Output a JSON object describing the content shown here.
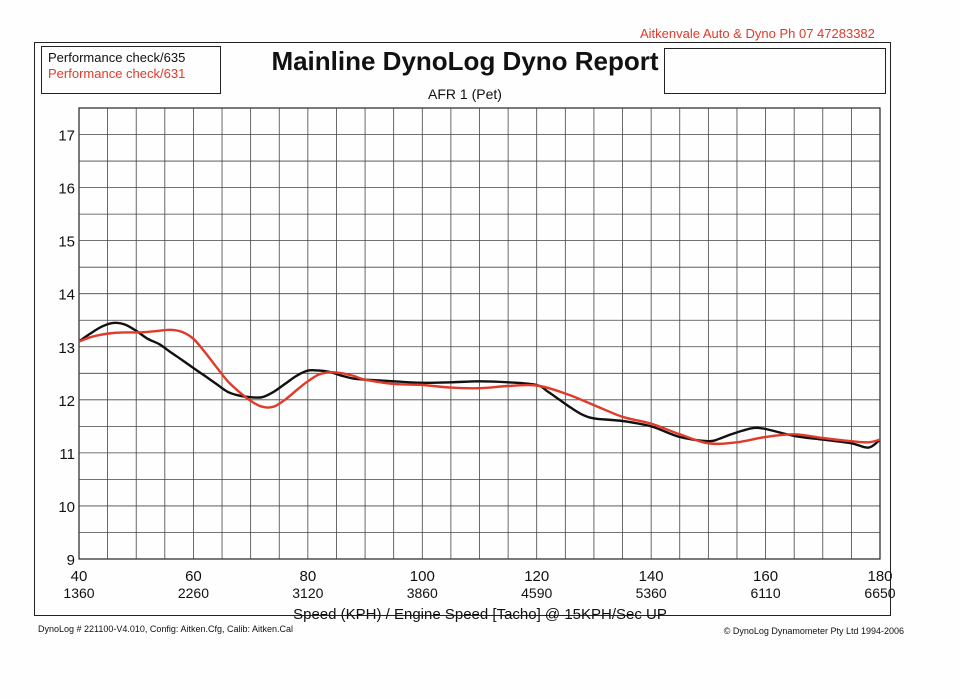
{
  "header": {
    "company": "Aitkenvale Auto & Dyno  Ph 07  47283382",
    "title": "Mainline DynoLog Dyno Report",
    "subtitle": "AFR  1 (Pet)"
  },
  "legend": {
    "items": [
      {
        "label": "Performance check/635",
        "color": "#111111"
      },
      {
        "label": "Performance check/631",
        "color": "#e03a2a"
      }
    ]
  },
  "footer": {
    "left": "DynoLog # 221100-V4.010, Config: Aitken.Cfg, Calib: Aitken.Cal",
    "right": "© DynoLog Dynamometer Pty Ltd 1994-2006"
  },
  "chart_data": {
    "type": "line",
    "title": "Mainline DynoLog Dyno Report",
    "subtitle": "AFR  1 (Pet)",
    "xlabel": "Speed (KPH) / Engine Speed [Tacho] @ 15KPH/Sec UP",
    "ylabel": "",
    "xlim": [
      40,
      180
    ],
    "ylim": [
      9,
      17.5
    ],
    "grid": true,
    "x_ticks": [
      {
        "value": 40,
        "label": "40",
        "sublabel": "1360"
      },
      {
        "value": 60,
        "label": "60",
        "sublabel": "2260"
      },
      {
        "value": 80,
        "label": "80",
        "sublabel": "3120"
      },
      {
        "value": 100,
        "label": "100",
        "sublabel": "3860"
      },
      {
        "value": 120,
        "label": "120",
        "sublabel": "4590"
      },
      {
        "value": 140,
        "label": "140",
        "sublabel": "5360"
      },
      {
        "value": 160,
        "label": "160",
        "sublabel": "6110"
      },
      {
        "value": 180,
        "label": "180",
        "sublabel": "6650"
      }
    ],
    "y_ticks": [
      9,
      10,
      11,
      12,
      13,
      14,
      15,
      16,
      17
    ],
    "series": [
      {
        "name": "Performance check/635",
        "color": "#111111",
        "x": [
          40,
          42,
          44,
          46,
          48,
          50,
          52,
          54,
          56,
          58,
          60,
          62,
          64,
          66,
          68,
          70,
          72,
          74,
          76,
          78,
          80,
          82,
          84,
          86,
          88,
          90,
          95,
          100,
          105,
          110,
          115,
          120,
          122,
          124,
          126,
          128,
          130,
          135,
          140,
          145,
          150,
          152,
          154,
          156,
          158,
          160,
          165,
          170,
          175,
          178,
          180
        ],
        "y": [
          13.1,
          13.25,
          13.38,
          13.45,
          13.42,
          13.3,
          13.15,
          13.05,
          12.9,
          12.75,
          12.6,
          12.45,
          12.3,
          12.15,
          12.08,
          12.05,
          12.05,
          12.15,
          12.3,
          12.45,
          12.55,
          12.55,
          12.52,
          12.45,
          12.4,
          12.38,
          12.35,
          12.32,
          12.33,
          12.35,
          12.33,
          12.28,
          12.15,
          12.0,
          11.85,
          11.72,
          11.65,
          11.6,
          11.5,
          11.3,
          11.22,
          11.27,
          11.35,
          11.42,
          11.47,
          11.45,
          11.32,
          11.25,
          11.18,
          11.1,
          11.25
        ]
      },
      {
        "name": "Performance check/631",
        "color": "#e03a2a",
        "x": [
          40,
          42,
          44,
          46,
          48,
          50,
          52,
          54,
          56,
          58,
          60,
          62,
          64,
          66,
          68,
          70,
          72,
          74,
          76,
          78,
          80,
          82,
          84,
          86,
          88,
          90,
          95,
          100,
          105,
          110,
          115,
          120,
          125,
          130,
          135,
          140,
          145,
          150,
          155,
          160,
          165,
          170,
          175,
          178,
          180
        ],
        "y": [
          13.1,
          13.18,
          13.23,
          13.26,
          13.27,
          13.27,
          13.28,
          13.3,
          13.32,
          13.28,
          13.15,
          12.9,
          12.62,
          12.35,
          12.15,
          11.98,
          11.87,
          11.87,
          12.0,
          12.18,
          12.35,
          12.48,
          12.52,
          12.5,
          12.45,
          12.38,
          12.3,
          12.28,
          12.23,
          12.22,
          12.26,
          12.27,
          12.12,
          11.9,
          11.68,
          11.55,
          11.35,
          11.18,
          11.2,
          11.3,
          11.35,
          11.28,
          11.22,
          11.2,
          11.25
        ]
      }
    ]
  }
}
